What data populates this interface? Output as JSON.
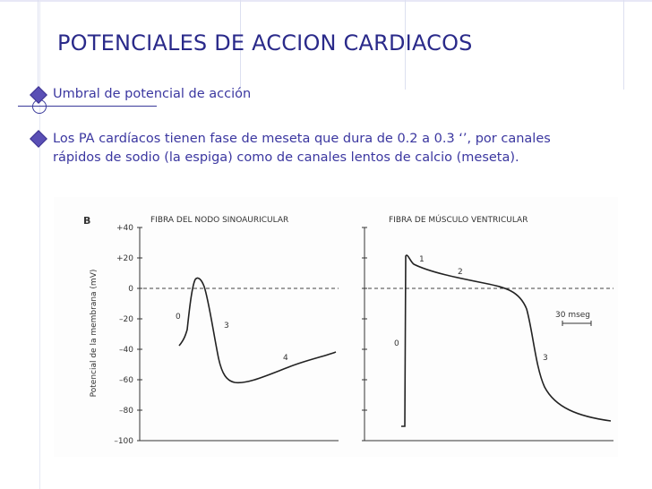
{
  "slide": {
    "title": "POTENCIALES DE ACCION CARDIACOS",
    "bullets": [
      {
        "text": "Umbral de potencial de acción"
      },
      {
        "line1": "Los PA cardíacos tienen fase de meseta que dura de 0.2 a 0.3 ‘’, por canales",
        "line2": "rápidos de sodio (la espiga) como de canales lentos de calcio (meseta)."
      }
    ]
  },
  "colors": {
    "title": "#2a2a8a",
    "text": "#3b37a0",
    "bullet": "#5a4fb5"
  },
  "figure": {
    "panel_label": "B",
    "ylabel": "Potencial de la membrana (mV)",
    "y_ticks": [
      "+40",
      "+20",
      "0",
      "–20",
      "–40",
      "–60",
      "–80",
      "–100"
    ],
    "left_title": "FIBRA DEL NODO SINOAURICULAR",
    "right_title": "FIBRA DE MÚSCULO VENTRICULAR",
    "left_phases": [
      "0",
      "3",
      "4"
    ],
    "right_phases": [
      "1",
      "2",
      "0",
      "3"
    ],
    "scale_label": "30 mseg"
  }
}
